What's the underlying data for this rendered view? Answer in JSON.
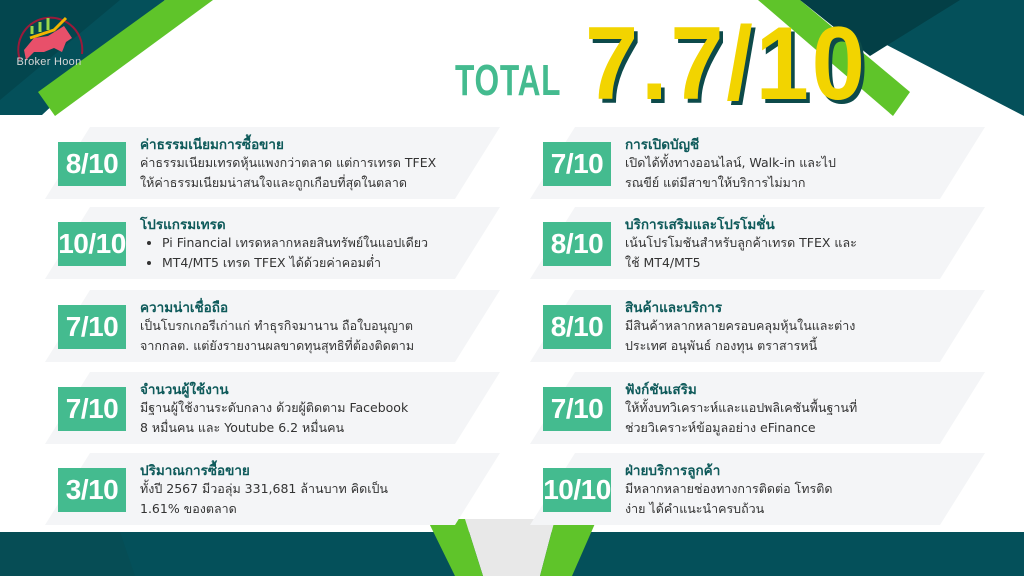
{
  "brand": {
    "name": "Broker Hoon"
  },
  "header": {
    "total_label": "TOTAL",
    "total_score": "7.7/10"
  },
  "colors": {
    "accent_green": "#44bb8f",
    "dark_teal": "#04505a",
    "lime": "#5fc42a",
    "yellow": "#f2d400"
  },
  "left_items": [
    {
      "score": "8/10",
      "title": "ค่าธรรมเนียมการซื้อขาย",
      "lines": [
        "ค่าธรรมเนียมเทรดหุ้นแพงกว่าตลาด แต่การเทรด TFEX",
        "ให้ค่าธรรมเนียมน่าสนใจและถูกเกือบที่สุดในตลาด"
      ]
    },
    {
      "score": "10/10",
      "title": "โปรแกรมเทรด",
      "bullets": [
        "Pi Financial เทรดหลากหลยสินทรัพย์ในแอปเดียว",
        "MT4/MT5 เทรด TFEX ได้ด้วยค่าคอมต่ำ"
      ]
    },
    {
      "score": "7/10",
      "title": "ความน่าเชื่อถือ",
      "lines": [
        "เป็นโบรกเกอรีเก่าแก่ ทำธุรกิจมานาน ถือใบอนุญาต",
        "จากกลต. แต่ยังรายงานผลขาดทุนสุทธิที่ต้องติดตาม"
      ]
    },
    {
      "score": "7/10",
      "title": "จำนวนผู้ใช้งาน",
      "lines": [
        "มีฐานผู้ใช้งานระดับกลาง ด้วยผู้ติดตาม Facebook",
        "8 หมื่นคน และ Youtube 6.2 หมื่นคน"
      ]
    },
    {
      "score": "3/10",
      "title": "ปริมาณการซื้อขาย",
      "lines": [
        "ทั้งปี 2567 มีวอลุ่ม 331,681 ล้านบาท คิดเป็น",
        "1.61% ของตลาด"
      ]
    }
  ],
  "right_items": [
    {
      "score": "7/10",
      "title": "การเปิดบัญชี",
      "lines": [
        "เปิดได้ทั้งทางออนไลน์, Walk-in และไป",
        "รณขีย์ แต่มีสาขาให้บริการไม่มาก"
      ]
    },
    {
      "score": "8/10",
      "title": "บริการเสริมและโปรโมชั่น",
      "lines": [
        "เน้นโปรโมชันสำหรับลูกค้าเทรด TFEX และ",
        "ใช้ MT4/MT5"
      ]
    },
    {
      "score": "8/10",
      "title": "สินค้าและบริการ",
      "lines": [
        "มีสินค้าหลากหลายครอบคลุมหุ้นในและต่าง",
        "ประเทศ อนุพันธ์ กองทุน ตราสารหนี้"
      ]
    },
    {
      "score": "7/10",
      "title": "ฟังก์ชันเสริม",
      "lines": [
        "ให้ทั้งบทวิเคราะห์และแอปพลิเคชันพื้นฐานที่",
        "ช่วยวิเคราะห์ข้อมูลอย่าง eFinance"
      ]
    },
    {
      "score": "10/10",
      "title": "ฝ่ายบริการลูกค้า",
      "lines": [
        "มีหลากหลายช่องทางการติดต่อ โทรติด",
        "ง่าย ได้คำแนะนำครบถ้วน"
      ]
    }
  ]
}
